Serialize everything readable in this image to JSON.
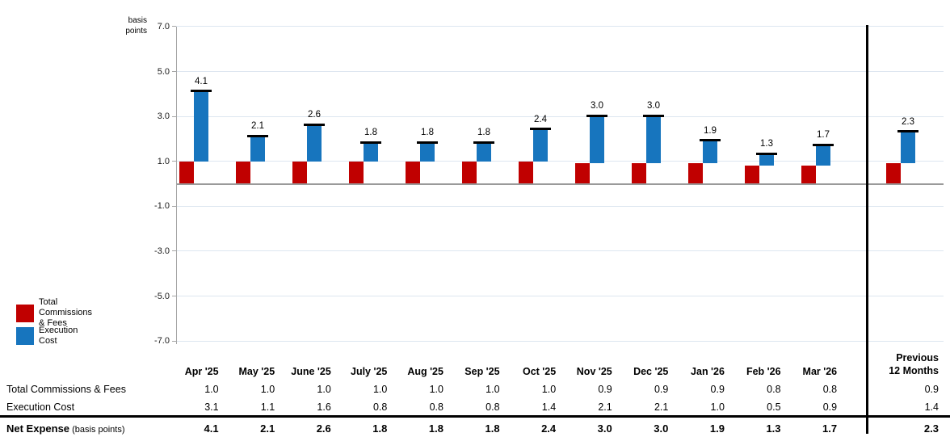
{
  "chart_data": {
    "type": "bar",
    "subtype": "stacked-with-net-marker",
    "y_axis_label": "basis\npoints",
    "categories": [
      "Apr '25",
      "May '25",
      "June '25",
      "July '25",
      "Aug '25",
      "Sep '25",
      "Oct '25",
      "Nov '25",
      "Dec '25",
      "Jan '26",
      "Feb '26",
      "Mar '26",
      "Previous 12 Months"
    ],
    "series": [
      {
        "name": "Total Commissions & Fees",
        "color": "#C00000",
        "values": [
          1.0,
          1.0,
          1.0,
          1.0,
          1.0,
          1.0,
          1.0,
          0.9,
          0.9,
          0.9,
          0.8,
          0.8,
          0.9
        ]
      },
      {
        "name": "Execution Cost",
        "color": "#1775BE",
        "values": [
          3.1,
          1.1,
          1.6,
          0.8,
          0.8,
          0.8,
          1.4,
          2.1,
          2.1,
          1.0,
          0.5,
          0.9,
          1.4
        ]
      }
    ],
    "net_totals": [
      4.1,
      2.1,
      2.6,
      1.8,
      1.8,
      1.8,
      2.4,
      3.0,
      3.0,
      1.9,
      1.3,
      1.7,
      2.3
    ],
    "net_marker_color": "#000000",
    "ylim": [
      -7.0,
      7.0
    ],
    "yticks": [
      7.0,
      5.0,
      3.0,
      1.0,
      -1.0,
      -3.0,
      -5.0,
      -7.0
    ],
    "grid": true,
    "zero_line": true,
    "separator_after_category": "Mar '26",
    "legend_position": "bottom-left"
  },
  "legend": {
    "items": [
      {
        "label": "Total Commissions\n& Fees",
        "color": "#C00000"
      },
      {
        "label": "Execution\nCost",
        "color": "#1775BE"
      }
    ]
  },
  "table": {
    "col_headers": [
      "Apr '25",
      "May '25",
      "June '25",
      "July '25",
      "Aug '25",
      "Sep '25",
      "Oct '25",
      "Nov '25",
      "Dec '25",
      "Jan '26",
      "Feb '26",
      "Mar '26"
    ],
    "prev_header_lines": [
      "Previous",
      "12 Months"
    ],
    "rows": [
      {
        "label": "Total Commissions & Fees",
        "label_suffix": "",
        "values": [
          1.0,
          1.0,
          1.0,
          1.0,
          1.0,
          1.0,
          1.0,
          0.9,
          0.9,
          0.9,
          0.8,
          0.8
        ],
        "previous": 0.9,
        "bold": false
      },
      {
        "label": "Execution Cost",
        "label_suffix": "",
        "values": [
          3.1,
          1.1,
          1.6,
          0.8,
          0.8,
          0.8,
          1.4,
          2.1,
          2.1,
          1.0,
          0.5,
          0.9
        ],
        "previous": 1.4,
        "bold": false
      },
      {
        "label": "Net Expense",
        "label_suffix": "(basis points)",
        "values": [
          4.1,
          2.1,
          2.6,
          1.8,
          1.8,
          1.8,
          2.4,
          3.0,
          3.0,
          1.9,
          1.3,
          1.7
        ],
        "previous": 2.3,
        "bold": true
      }
    ]
  }
}
